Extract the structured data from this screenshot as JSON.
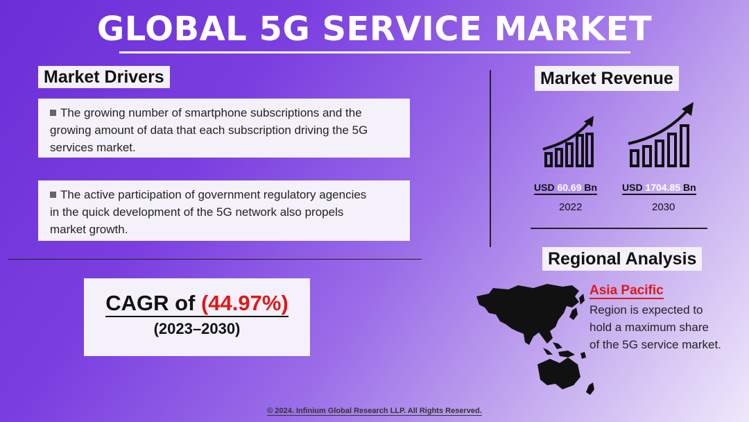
{
  "title": "GLOBAL 5G SERVICE MARKET",
  "drivers": {
    "heading": "Market Drivers",
    "items": [
      "The growing number of smartphone subscriptions and the growing amount of data that each subscription driving the 5G services market.",
      "The active participation of government regulatory agencies in the quick development of the 5G network also propels market growth."
    ]
  },
  "cagr": {
    "prefix": "CAGR of ",
    "value": "(44.97%)",
    "years": "(2023–2030)"
  },
  "revenue": {
    "heading": "Market Revenue",
    "items": [
      {
        "currency": "USD",
        "value": "60.69",
        "unit": "Bn",
        "year": "2022"
      },
      {
        "currency": "USD",
        "value": "1704.85",
        "unit": "Bn",
        "year": "2030"
      }
    ]
  },
  "region": {
    "heading": "Regional Analysis",
    "name": "Asia Pacific",
    "lines": [
      "Region is expected to",
      "hold a maximum share",
      "of the 5G service market."
    ]
  },
  "footer": "© 2024. Infinium Global Research LLP. All Rights Reserved.",
  "colors": {
    "accent": "#e01818",
    "panel": "#f4f1fa"
  }
}
